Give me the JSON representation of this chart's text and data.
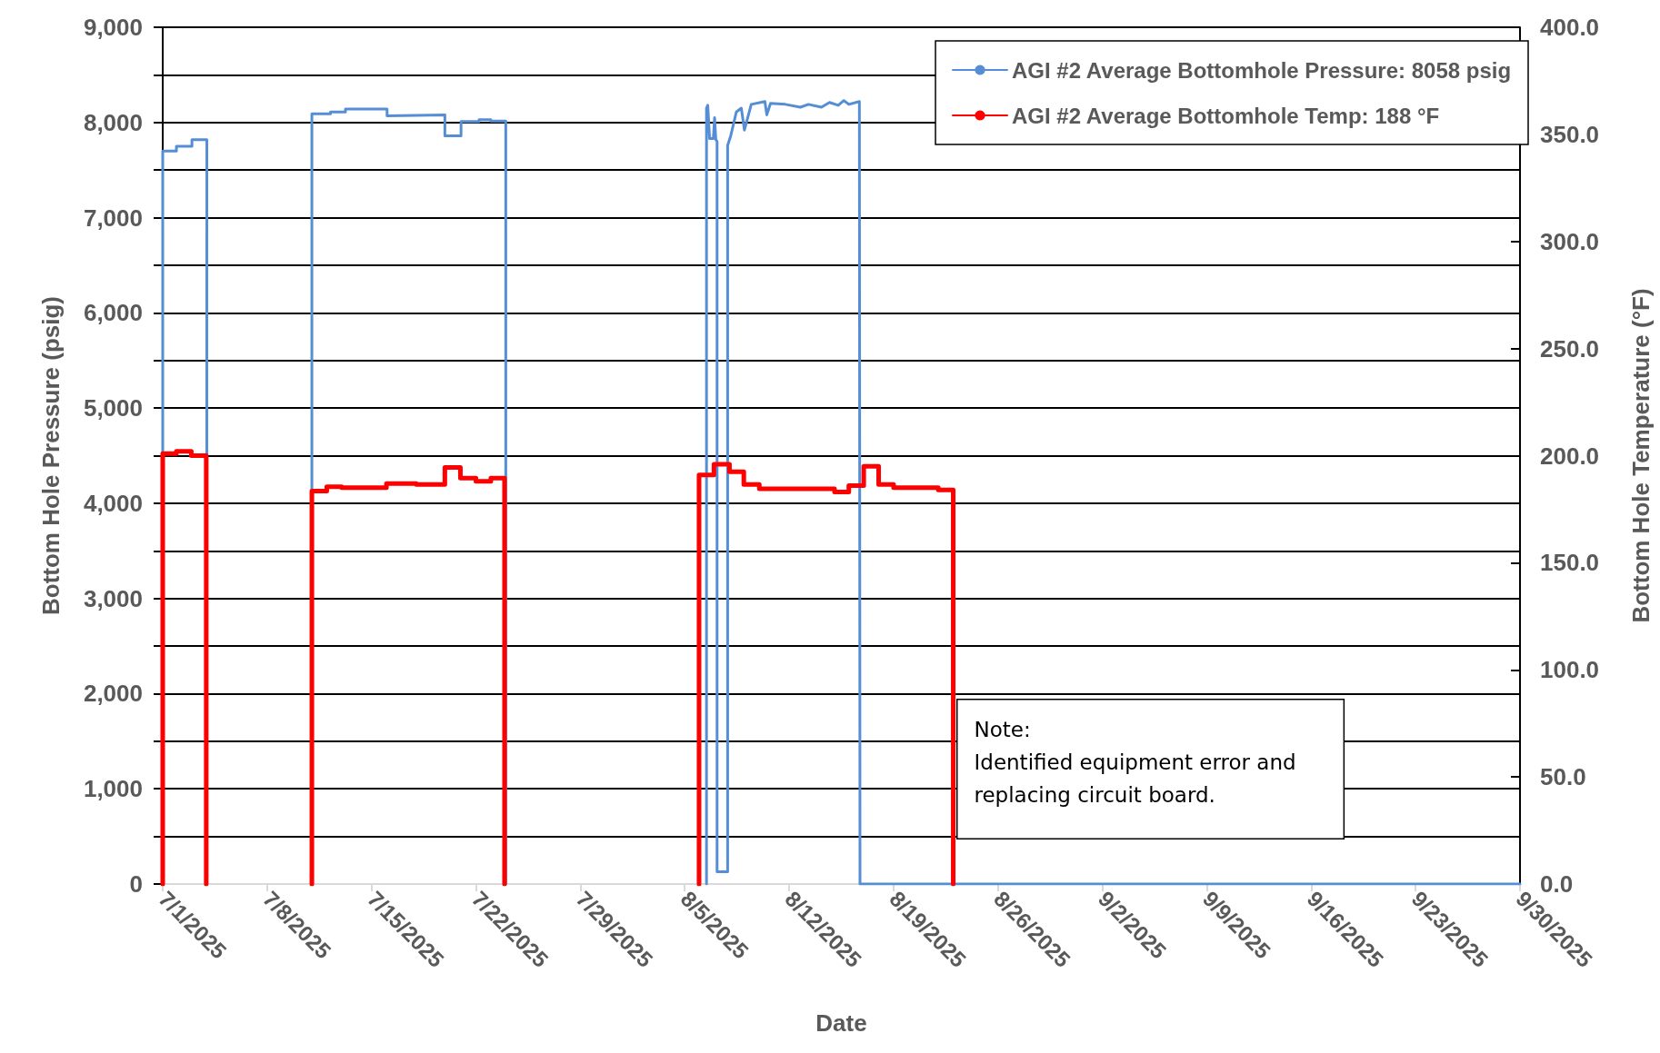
{
  "chart_data": {
    "type": "line",
    "xlabel": "Date",
    "ylabel": "Bottom Hole Pressure (psig)",
    "y2label": "Bottom Hole Temperature (°F)",
    "annotations": [
      "Note:\nIdentified equipment error and\nreplacing circuit board."
    ],
    "xlim": [
      "2025-07-01",
      "2025-09-30"
    ],
    "xticks": [
      {
        "value": "2025-07-01",
        "label": "7/1/2025"
      },
      {
        "value": "2025-07-08",
        "label": "7/8/2025"
      },
      {
        "value": "2025-07-15",
        "label": "7/15/2025"
      },
      {
        "value": "2025-07-22",
        "label": "7/22/2025"
      },
      {
        "value": "2025-07-29",
        "label": "7/29/2025"
      },
      {
        "value": "2025-08-05",
        "label": "8/5/2025"
      },
      {
        "value": "2025-08-12",
        "label": "8/12/2025"
      },
      {
        "value": "2025-08-19",
        "label": "8/19/2025"
      },
      {
        "value": "2025-08-26",
        "label": "8/26/2025"
      },
      {
        "value": "2025-09-02",
        "label": "9/2/2025"
      },
      {
        "value": "2025-09-09",
        "label": "9/9/2025"
      },
      {
        "value": "2025-09-16",
        "label": "9/16/2025"
      },
      {
        "value": "2025-09-23",
        "label": "9/23/2025"
      },
      {
        "value": "2025-09-30",
        "label": "9/30/2025"
      }
    ],
    "ylim": [
      0,
      9000
    ],
    "yticks": [
      0,
      {
        "value": 500,
        "label": null
      },
      {
        "value": 1000,
        "label": "1,000"
      },
      {
        "value": 1500,
        "label": null
      },
      {
        "value": 2000,
        "label": "2,000"
      },
      {
        "value": 2500,
        "label": null
      },
      {
        "value": 3000,
        "label": "3,000"
      },
      {
        "value": 3500,
        "label": null
      },
      {
        "value": 4000,
        "label": "4,000"
      },
      {
        "value": 4500,
        "label": null
      },
      {
        "value": 5000,
        "label": "5,000"
      },
      {
        "value": 5500,
        "label": null
      },
      {
        "value": 6000,
        "label": "6,000"
      },
      {
        "value": 6500,
        "label": null
      },
      {
        "value": 7000,
        "label": "7,000"
      },
      {
        "value": 7500,
        "label": null
      },
      {
        "value": 8000,
        "label": "8,000"
      },
      {
        "value": 8500,
        "label": null
      },
      {
        "value": 9000,
        "label": "9,000"
      }
    ],
    "y2lim": [
      0,
      400
    ],
    "y2ticks": [
      {
        "value": 0,
        "label": "0.0"
      },
      {
        "value": 50,
        "label": "50.0"
      },
      {
        "value": 100,
        "label": "100.0"
      },
      {
        "value": 150,
        "label": "150.0"
      },
      {
        "value": 200,
        "label": "200.0"
      },
      {
        "value": 250,
        "label": "250.0"
      },
      {
        "value": 300,
        "label": "300.0"
      },
      {
        "value": 350,
        "label": "350.0"
      },
      {
        "value": 400,
        "label": "400.0"
      }
    ],
    "grid": "y",
    "legend": "top right",
    "marker": "none",
    "line_style": "solid",
    "series": [
      {
        "name": "AGI #2 Average Bottomhole Pressure: 8058 psig",
        "color": "#558ed5",
        "x": [
          "2025-07-01T00:00",
          "2025-07-01T00:00",
          "2025-07-01T22:00",
          "2025-07-01T22:00",
          "2025-07-02T23:00",
          "2025-07-02T23:00",
          "2025-07-03T23:00",
          "2025-07-03T23:00",
          "2025-07-06T00:00",
          "2025-07-11T00:00",
          "2025-07-11T00:00",
          "2025-07-12T06:00",
          "2025-07-12T06:00",
          "2025-07-13T06:00",
          "2025-07-13T06:00",
          "2025-07-16T01:00",
          "2025-07-16T01:00",
          "2025-07-19T22:00",
          "2025-07-19T22:00",
          "2025-07-21T00:00",
          "2025-07-21T00:00",
          "2025-07-22T05:00",
          "2025-07-22T05:00",
          "2025-07-23T00:00",
          "2025-07-23T00:00",
          "2025-07-24T00:00",
          "2025-07-24T00:00",
          "2025-07-30T00:00",
          "2025-08-06T11:00",
          "2025-08-06T11:00",
          "2025-08-06T13:00",
          "2025-08-06T16:00",
          "2025-08-06T22:00",
          "2025-08-07T00:00",
          "2025-08-07T02:00",
          "2025-08-07T04:00",
          "2025-08-07T04:00",
          "2025-08-07T21:00",
          "2025-08-07T21:00",
          "2025-08-08T02:00",
          "2025-08-08T11:00",
          "2025-08-08T19:00",
          "2025-08-09T00:00",
          "2025-08-09T11:00",
          "2025-08-10T09:00",
          "2025-08-10T12:00",
          "2025-08-10T18:00",
          "2025-08-11T18:00",
          "2025-08-12T18:00",
          "2025-08-13T07:00",
          "2025-08-14T04:00",
          "2025-08-14T17:00",
          "2025-08-15T07:00",
          "2025-08-15T16:00",
          "2025-08-16T00:00",
          "2025-08-16T17:00",
          "2025-08-16T18:00",
          "2025-08-16T18:00",
          "2025-09-30T00:00"
        ],
        "values": [
          0,
          7700,
          7700,
          7750,
          7750,
          7820,
          7820,
          0,
          null,
          0,
          8090,
          8090,
          8110,
          8110,
          8140,
          8140,
          8070,
          8080,
          7860,
          7860,
          8010,
          8010,
          8030,
          8030,
          8015,
          8015,
          0,
          null,
          0,
          8150,
          8180,
          7830,
          7830,
          8050,
          7820,
          7800,
          130,
          130,
          7760,
          7860,
          8110,
          8150,
          7920,
          8190,
          8220,
          8080,
          8200,
          8190,
          8160,
          8190,
          8160,
          8210,
          8180,
          8230,
          8190,
          8220,
          8220,
          0,
          0
        ]
      },
      {
        "name": "AGI #2 Average Bottomhole Temp: 188 °F",
        "color": "#ff0000",
        "axis": "y2",
        "x": [
          "2025-07-01T00:00",
          "2025-07-01T00:00",
          "2025-07-01T22:00",
          "2025-07-01T22:00",
          "2025-07-02T22:00",
          "2025-07-02T22:00",
          "2025-07-03T22:00",
          "2025-07-03T22:00",
          "2025-07-06T00:00",
          "2025-07-11T00:00",
          "2025-07-11T00:00",
          "2025-07-12T00:00",
          "2025-07-12T00:00",
          "2025-07-13T00:00",
          "2025-07-13T00:00",
          "2025-07-16T00:00",
          "2025-07-16T00:00",
          "2025-07-18T00:00",
          "2025-07-18T00:00",
          "2025-07-19T22:00",
          "2025-07-19T22:00",
          "2025-07-20T23:00",
          "2025-07-20T23:00",
          "2025-07-22T00:00",
          "2025-07-22T00:00",
          "2025-07-23T00:00",
          "2025-07-23T00:00",
          "2025-07-23T22:00",
          "2025-07-23T22:00",
          "2025-07-30T00:00",
          "2025-08-05T23:00",
          "2025-08-05T23:00",
          "2025-08-06T23:00",
          "2025-08-06T23:00",
          "2025-08-08T00:00",
          "2025-08-08T00:00",
          "2025-08-08T23:00",
          "2025-08-08T23:00",
          "2025-08-10T00:00",
          "2025-08-10T00:00",
          "2025-08-14T00:00",
          "2025-08-14T00:00",
          "2025-08-15T01:00",
          "2025-08-15T01:00",
          "2025-08-16T00:00",
          "2025-08-16T00:00",
          "2025-08-17T00:00",
          "2025-08-17T00:00",
          "2025-08-18T00:00",
          "2025-08-18T00:00",
          "2025-08-19T00:00",
          "2025-08-19T00:00",
          "2025-08-22T00:00",
          "2025-08-22T00:00",
          "2025-08-23T00:00",
          "2025-08-23T00:00"
        ],
        "values": [
          0,
          201,
          201,
          202,
          202,
          200,
          200,
          0,
          null,
          0,
          183.5,
          183.5,
          185.5,
          185.5,
          185,
          185,
          187,
          187,
          186.5,
          186.5,
          194.5,
          194.5,
          189.5,
          189.5,
          188,
          188,
          189.5,
          189.5,
          0,
          null,
          0,
          191,
          191,
          196,
          196,
          192.5,
          192.5,
          186.5,
          186.5,
          184.5,
          184.5,
          184.5,
          184.5,
          183,
          183,
          186,
          186,
          195,
          195,
          186.5,
          186.5,
          185,
          185,
          184,
          184,
          0
        ]
      }
    ]
  }
}
